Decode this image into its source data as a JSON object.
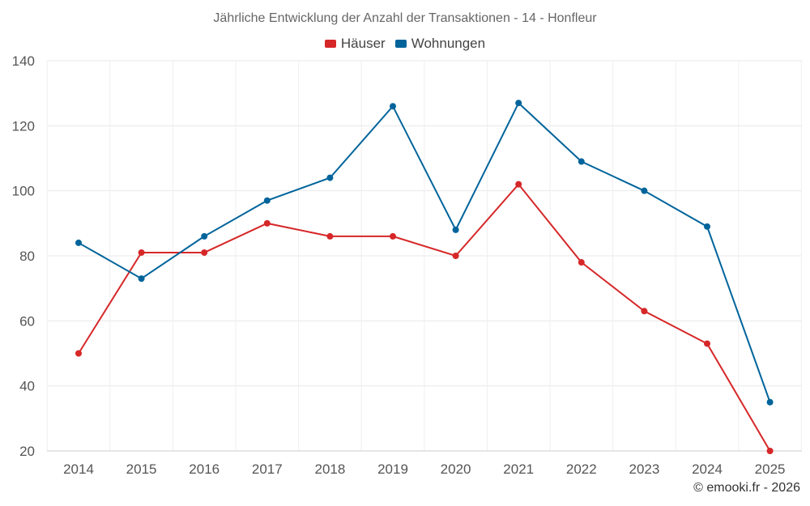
{
  "chart_data": {
    "type": "line",
    "title": "Jährliche Entwicklung der Anzahl der Transaktionen - 14 - Honfleur",
    "categories": [
      "2014",
      "2015",
      "2016",
      "2017",
      "2018",
      "2019",
      "2020",
      "2021",
      "2022",
      "2023",
      "2024",
      "2025"
    ],
    "series": [
      {
        "name": "Häuser",
        "color": "#d62728",
        "values": [
          50,
          81,
          81,
          90,
          86,
          86,
          80,
          102,
          78,
          63,
          53,
          20
        ]
      },
      {
        "name": "Wohnungen",
        "color": "#00649b",
        "values": [
          84,
          73,
          86,
          97,
          104,
          126,
          88,
          127,
          109,
          100,
          89,
          35
        ]
      }
    ],
    "ylim": [
      20,
      140
    ],
    "yticks": [
      20,
      40,
      60,
      80,
      100,
      120,
      140
    ],
    "xlabel": "",
    "ylabel": "",
    "grid": true,
    "legend": "top-center"
  },
  "credit": "© emooki.fr - 2026"
}
